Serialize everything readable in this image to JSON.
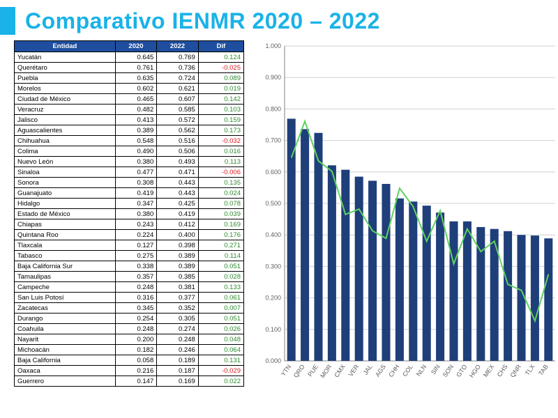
{
  "title": "Comparativo IENMR 2020 – 2022",
  "colors": {
    "accent": "#1ab2e8",
    "header_bg": "#1f4e9e",
    "header_fg": "#ffffff",
    "border": "#000000",
    "pos": "#2e8b2e",
    "neg": "#d82020",
    "bar": "#1f3f7a",
    "line": "#5fd25f",
    "grid": "#d0d0d0",
    "axis": "#808080",
    "bg": "#ffffff"
  },
  "table": {
    "columns": [
      "Entidad",
      "2020",
      "2022",
      "Dif"
    ],
    "rows": [
      [
        "Yucatán",
        "0.645",
        "0.769",
        "0.124"
      ],
      [
        "Querétaro",
        "0.761",
        "0.736",
        "-0.025"
      ],
      [
        "Puebla",
        "0.635",
        "0.724",
        "0.089"
      ],
      [
        "Morelos",
        "0.602",
        "0.621",
        "0.019"
      ],
      [
        "Ciudad de México",
        "0.465",
        "0.607",
        "0.142"
      ],
      [
        "Veracruz",
        "0.482",
        "0.585",
        "0.103"
      ],
      [
        "Jalisco",
        "0.413",
        "0.572",
        "0.159"
      ],
      [
        "Aguascalientes",
        "0.389",
        "0.562",
        "0.173"
      ],
      [
        "Chihuahua",
        "0.548",
        "0.516",
        "-0.032"
      ],
      [
        "Colima",
        "0.490",
        "0.506",
        "0.016"
      ],
      [
        "Nuevo León",
        "0.380",
        "0.493",
        "0.113"
      ],
      [
        "Sinaloa",
        "0.477",
        "0.471",
        "-0.006"
      ],
      [
        "Sonora",
        "0.308",
        "0.443",
        "0.135"
      ],
      [
        "Guanajuato",
        "0.419",
        "0.443",
        "0.024"
      ],
      [
        "Hidalgo",
        "0.347",
        "0.425",
        "0.078"
      ],
      [
        "Estado de México",
        "0.380",
        "0.419",
        "0.039"
      ],
      [
        "Chiapas",
        "0.243",
        "0.412",
        "0.169"
      ],
      [
        "Quintana Roo",
        "0.224",
        "0.400",
        "0.176"
      ],
      [
        "Tlaxcala",
        "0.127",
        "0.398",
        "0.271"
      ],
      [
        "Tabasco",
        "0.275",
        "0.389",
        "0.114"
      ],
      [
        "Baja California Sur",
        "0.338",
        "0.389",
        "0.051"
      ],
      [
        "Tamaulipas",
        "0.357",
        "0.385",
        "0.028"
      ],
      [
        "Campeche",
        "0.248",
        "0.381",
        "0.133"
      ],
      [
        "San Luis Potosí",
        "0.316",
        "0.377",
        "0.061"
      ],
      [
        "Zacatecas",
        "0.345",
        "0.352",
        "0.007"
      ],
      [
        "Durango",
        "0.254",
        "0.305",
        "0.051"
      ],
      [
        "Coahuila",
        "0.248",
        "0.274",
        "0.026"
      ],
      [
        "Nayarit",
        "0.200",
        "0.248",
        "0.048"
      ],
      [
        "Michoacán",
        "0.182",
        "0.246",
        "0.064"
      ],
      [
        "Baja California",
        "0.058",
        "0.189",
        "0.131"
      ],
      [
        "Oaxaca",
        "0.216",
        "0.187",
        "-0.029"
      ],
      [
        "Guerrero",
        "0.147",
        "0.169",
        "0.022"
      ]
    ]
  },
  "chart": {
    "type": "bar+line",
    "ylim": [
      0,
      1.0
    ],
    "ytick_step": 0.1,
    "ytick_labels": [
      "0.000",
      "0.100",
      "0.200",
      "0.300",
      "0.400",
      "0.500",
      "0.600",
      "0.700",
      "0.800",
      "0.900",
      "1.000"
    ],
    "x_labels": [
      "YTN",
      "QRO",
      "PUE",
      "MOR",
      "CMX",
      "VER",
      "JAL",
      "AGS",
      "CHH",
      "COL",
      "NLN",
      "SIN",
      "SON",
      "GTO",
      "HGO",
      "MEX",
      "CHS",
      "QNR",
      "TLX",
      "TAB"
    ],
    "bars_2022": [
      0.769,
      0.736,
      0.724,
      0.621,
      0.607,
      0.585,
      0.572,
      0.562,
      0.516,
      0.506,
      0.493,
      0.471,
      0.443,
      0.443,
      0.425,
      0.419,
      0.412,
      0.4,
      0.398,
      0.389
    ],
    "line_2020": [
      0.645,
      0.761,
      0.635,
      0.602,
      0.465,
      0.482,
      0.413,
      0.389,
      0.548,
      0.49,
      0.38,
      0.477,
      0.308,
      0.419,
      0.347,
      0.38,
      0.243,
      0.224,
      0.127,
      0.275
    ],
    "bar_width_ratio": 0.62,
    "line_width": 2,
    "axis_fontsize": 9
  }
}
